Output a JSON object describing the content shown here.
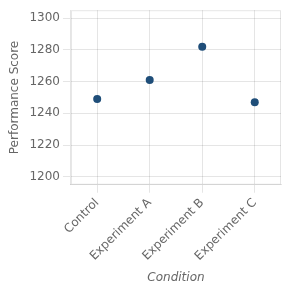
{
  "chart_data": {
    "type": "scatter",
    "categories": [
      "Control",
      "Experiment A",
      "Experiment B",
      "Experiment C"
    ],
    "values": [
      1249,
      1261,
      1282,
      1247
    ],
    "color": "#1f4e79",
    "xlabel": "Condition",
    "ylabel": "Performance Score",
    "ylim": [
      1195,
      1305
    ],
    "yticks": [
      1200,
      1220,
      1240,
      1260,
      1280,
      1300
    ],
    "grid": true
  }
}
